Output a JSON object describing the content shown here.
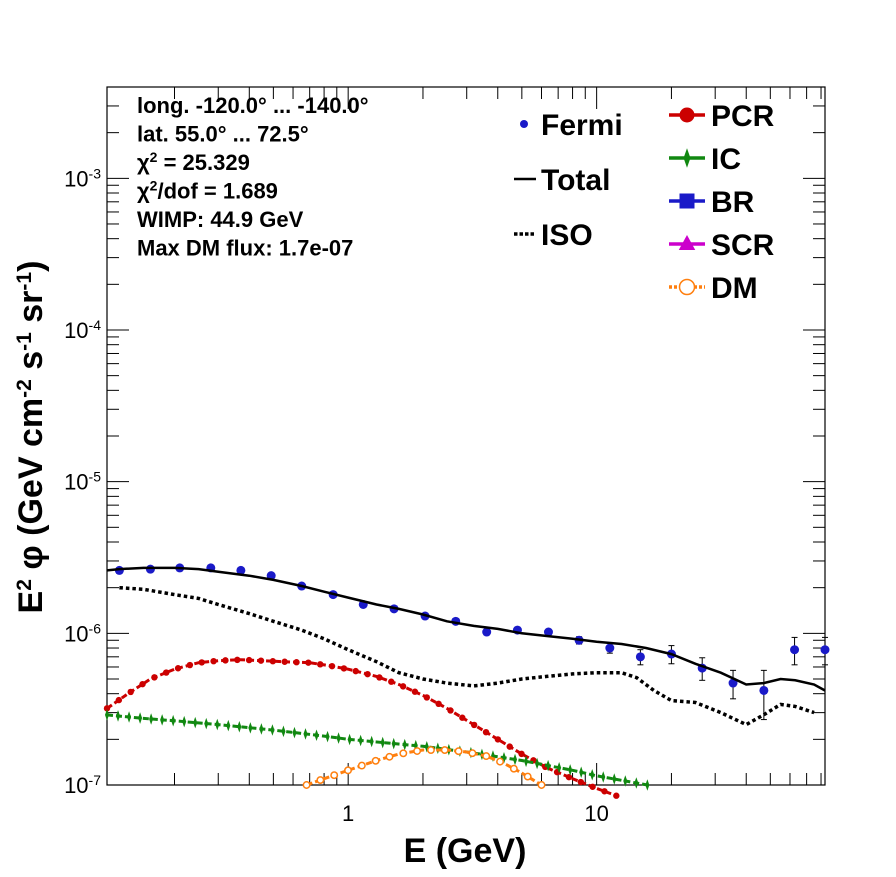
{
  "chart_data": {
    "type": "scatter",
    "title": "",
    "xlabel": "E (GeV)",
    "ylabel": "E² φ (GeV cm⁻² s⁻¹ sr⁻¹)",
    "xscale": "log",
    "yscale": "log",
    "xlim": [
      0.107,
      83
    ],
    "ylim": [
      1e-07,
      0.004
    ],
    "grid": false,
    "x_tick_labels": [
      "1",
      "10"
    ],
    "x_tick_values": [
      1,
      10
    ],
    "y_tick_labels": [
      "10⁻⁷",
      "10⁻⁶",
      "10⁻⁵",
      "10⁻⁴",
      "10⁻³"
    ],
    "y_tick_values": [
      1e-07,
      1e-06,
      1e-05,
      0.0001,
      0.001
    ],
    "info_lines": [
      "long. -120.0° ... -140.0°",
      "lat. 55.0° ... 72.5°",
      "χ² = 25.329",
      "χ²/dof = 1.689",
      "WIMP: 44.9 GeV",
      "Max DM flux: 1.7e-07"
    ],
    "legend_left": [
      {
        "label": "Fermi",
        "style": "point",
        "color": "#1a1ac8"
      },
      {
        "label": "Total",
        "style": "solid-line",
        "color": "#000000"
      },
      {
        "label": "ISO",
        "style": "dotted-line",
        "color": "#000000"
      }
    ],
    "legend_right": [
      {
        "label": "PCR",
        "style": "circle-dashed",
        "color": "#cc0000"
      },
      {
        "label": "IC",
        "style": "star-dashed",
        "color": "#118811"
      },
      {
        "label": "BR",
        "style": "square-dashed",
        "color": "#1a1ac8"
      },
      {
        "label": "SCR",
        "style": "triangle-dashed",
        "color": "#cc00cc"
      },
      {
        "label": "DM",
        "style": "open-circle-dotted",
        "color": "#ff7f0e"
      }
    ],
    "series": [
      {
        "name": "Fermi",
        "kind": "points",
        "color": "#1a1ac8",
        "x": [
          0.12,
          0.16,
          0.21,
          0.28,
          0.37,
          0.49,
          0.65,
          0.87,
          1.15,
          1.53,
          2.04,
          2.71,
          3.61,
          4.8,
          6.4,
          8.5,
          11.3,
          15.0,
          20.0,
          26.6,
          35.4,
          47.1,
          62.6,
          83.0
        ],
        "y": [
          2.6e-06,
          2.65e-06,
          2.7e-06,
          2.7e-06,
          2.6e-06,
          2.4e-06,
          2.05e-06,
          1.8e-06,
          1.55e-06,
          1.45e-06,
          1.3e-06,
          1.2e-06,
          1.02e-06,
          1.05e-06,
          1.02e-06,
          9e-07,
          8e-07,
          7e-07,
          7.3e-07,
          5.9e-07,
          4.7e-07,
          4.2e-07,
          7.8e-07,
          7.8e-07
        ],
        "yerr": [
          0,
          0,
          0,
          0,
          0,
          0,
          0,
          0,
          0,
          0,
          0,
          0,
          0,
          0,
          0,
          5e-08,
          6e-08,
          8e-08,
          1e-07,
          1e-07,
          1e-07,
          1.5e-07,
          1.6e-07,
          1.6e-07
        ]
      },
      {
        "name": "Total",
        "kind": "solid",
        "color": "#000000",
        "x": [
          0.107,
          0.12,
          0.15,
          0.2,
          0.25,
          0.3,
          0.4,
          0.5,
          0.65,
          0.8,
          1.0,
          1.3,
          1.6,
          2.0,
          2.5,
          3.2,
          4.0,
          5.0,
          6.3,
          8.0,
          10.0,
          12.6,
          15.8,
          20.0,
          25.0,
          31.6,
          40.0,
          47.0,
          55.0,
          63.0,
          75.0,
          83.0
        ],
        "y": [
          2.6e-06,
          2.65e-06,
          2.7e-06,
          2.7e-06,
          2.65e-06,
          2.55e-06,
          2.4e-06,
          2.25e-06,
          2.05e-06,
          1.88e-06,
          1.72e-06,
          1.55e-06,
          1.45e-06,
          1.33e-06,
          1.2e-06,
          1.12e-06,
          1.07e-06,
          1e-06,
          9.6e-07,
          9.2e-07,
          8.8e-07,
          8.5e-07,
          8e-07,
          7.3e-07,
          6.3e-07,
          5.5e-07,
          4.6e-07,
          4.7e-07,
          5e-07,
          4.9e-07,
          4.6e-07,
          4.2e-07
        ]
      },
      {
        "name": "ISO",
        "kind": "dotted",
        "color": "#000000",
        "x": [
          0.12,
          0.15,
          0.2,
          0.25,
          0.3,
          0.4,
          0.5,
          0.65,
          0.8,
          1.0,
          1.3,
          1.6,
          2.0,
          2.5,
          3.2,
          4.0,
          5.0,
          6.3,
          8.0,
          10.0,
          12.6,
          14.5,
          17.0,
          20.0,
          25.0,
          31.6,
          40.0,
          47.0,
          55.0,
          63.0,
          75.0
        ],
        "y": [
          2e-06,
          1.95e-06,
          1.8e-06,
          1.7e-06,
          1.55e-06,
          1.35e-06,
          1.2e-06,
          1.05e-06,
          9.2e-07,
          7.8e-07,
          6.5e-07,
          5.5e-07,
          5e-07,
          4.7e-07,
          4.5e-07,
          4.7e-07,
          5e-07,
          5.2e-07,
          5.4e-07,
          5.5e-07,
          5.5e-07,
          5.1e-07,
          4.2e-07,
          3.6e-07,
          3.5e-07,
          3e-07,
          2.5e-07,
          2.9e-07,
          3.4e-07,
          3.3e-07,
          3e-07
        ]
      },
      {
        "name": "PCR",
        "kind": "dashed-circles",
        "color": "#cc0000",
        "x": [
          0.107,
          0.13,
          0.16,
          0.2,
          0.25,
          0.3,
          0.37,
          0.45,
          0.55,
          0.7,
          0.85,
          1.0,
          1.3,
          1.6,
          2.0,
          2.5,
          3.2,
          4.0,
          5.0,
          6.3,
          8.0,
          10.0,
          12.0
        ],
        "y": [
          3.2e-07,
          4e-07,
          5e-07,
          5.8e-07,
          6.4e-07,
          6.6e-07,
          6.7e-07,
          6.6e-07,
          6.5e-07,
          6.4e-07,
          6.1e-07,
          5.8e-07,
          5.2e-07,
          4.6e-07,
          3.9e-07,
          3.2e-07,
          2.5e-07,
          2e-07,
          1.6e-07,
          1.3e-07,
          1.1e-07,
          9.5e-08,
          8.5e-08
        ]
      },
      {
        "name": "IC",
        "kind": "dashed-stars",
        "color": "#118811",
        "x": [
          0.107,
          0.15,
          0.2,
          0.3,
          0.5,
          0.8,
          1.0,
          1.5,
          2.0,
          3.0,
          5.0,
          8.0,
          10.0,
          16.0
        ],
        "y": [
          2.9e-07,
          2.75e-07,
          2.65e-07,
          2.5e-07,
          2.3e-07,
          2.1e-07,
          2e-07,
          1.88e-07,
          1.8e-07,
          1.65e-07,
          1.45e-07,
          1.25e-07,
          1.15e-07,
          1e-07
        ]
      },
      {
        "name": "DM",
        "kind": "dashed-open-circles",
        "color": "#ff7f0e",
        "x": [
          0.68,
          0.8,
          1.0,
          1.3,
          1.6,
          2.0,
          2.5,
          3.0,
          3.6,
          4.2,
          5.0,
          6.0
        ],
        "y": [
          1e-07,
          1.1e-07,
          1.25e-07,
          1.45e-07,
          1.6e-07,
          1.7e-07,
          1.7e-07,
          1.65e-07,
          1.55e-07,
          1.4e-07,
          1.2e-07,
          1e-07
        ]
      }
    ]
  }
}
